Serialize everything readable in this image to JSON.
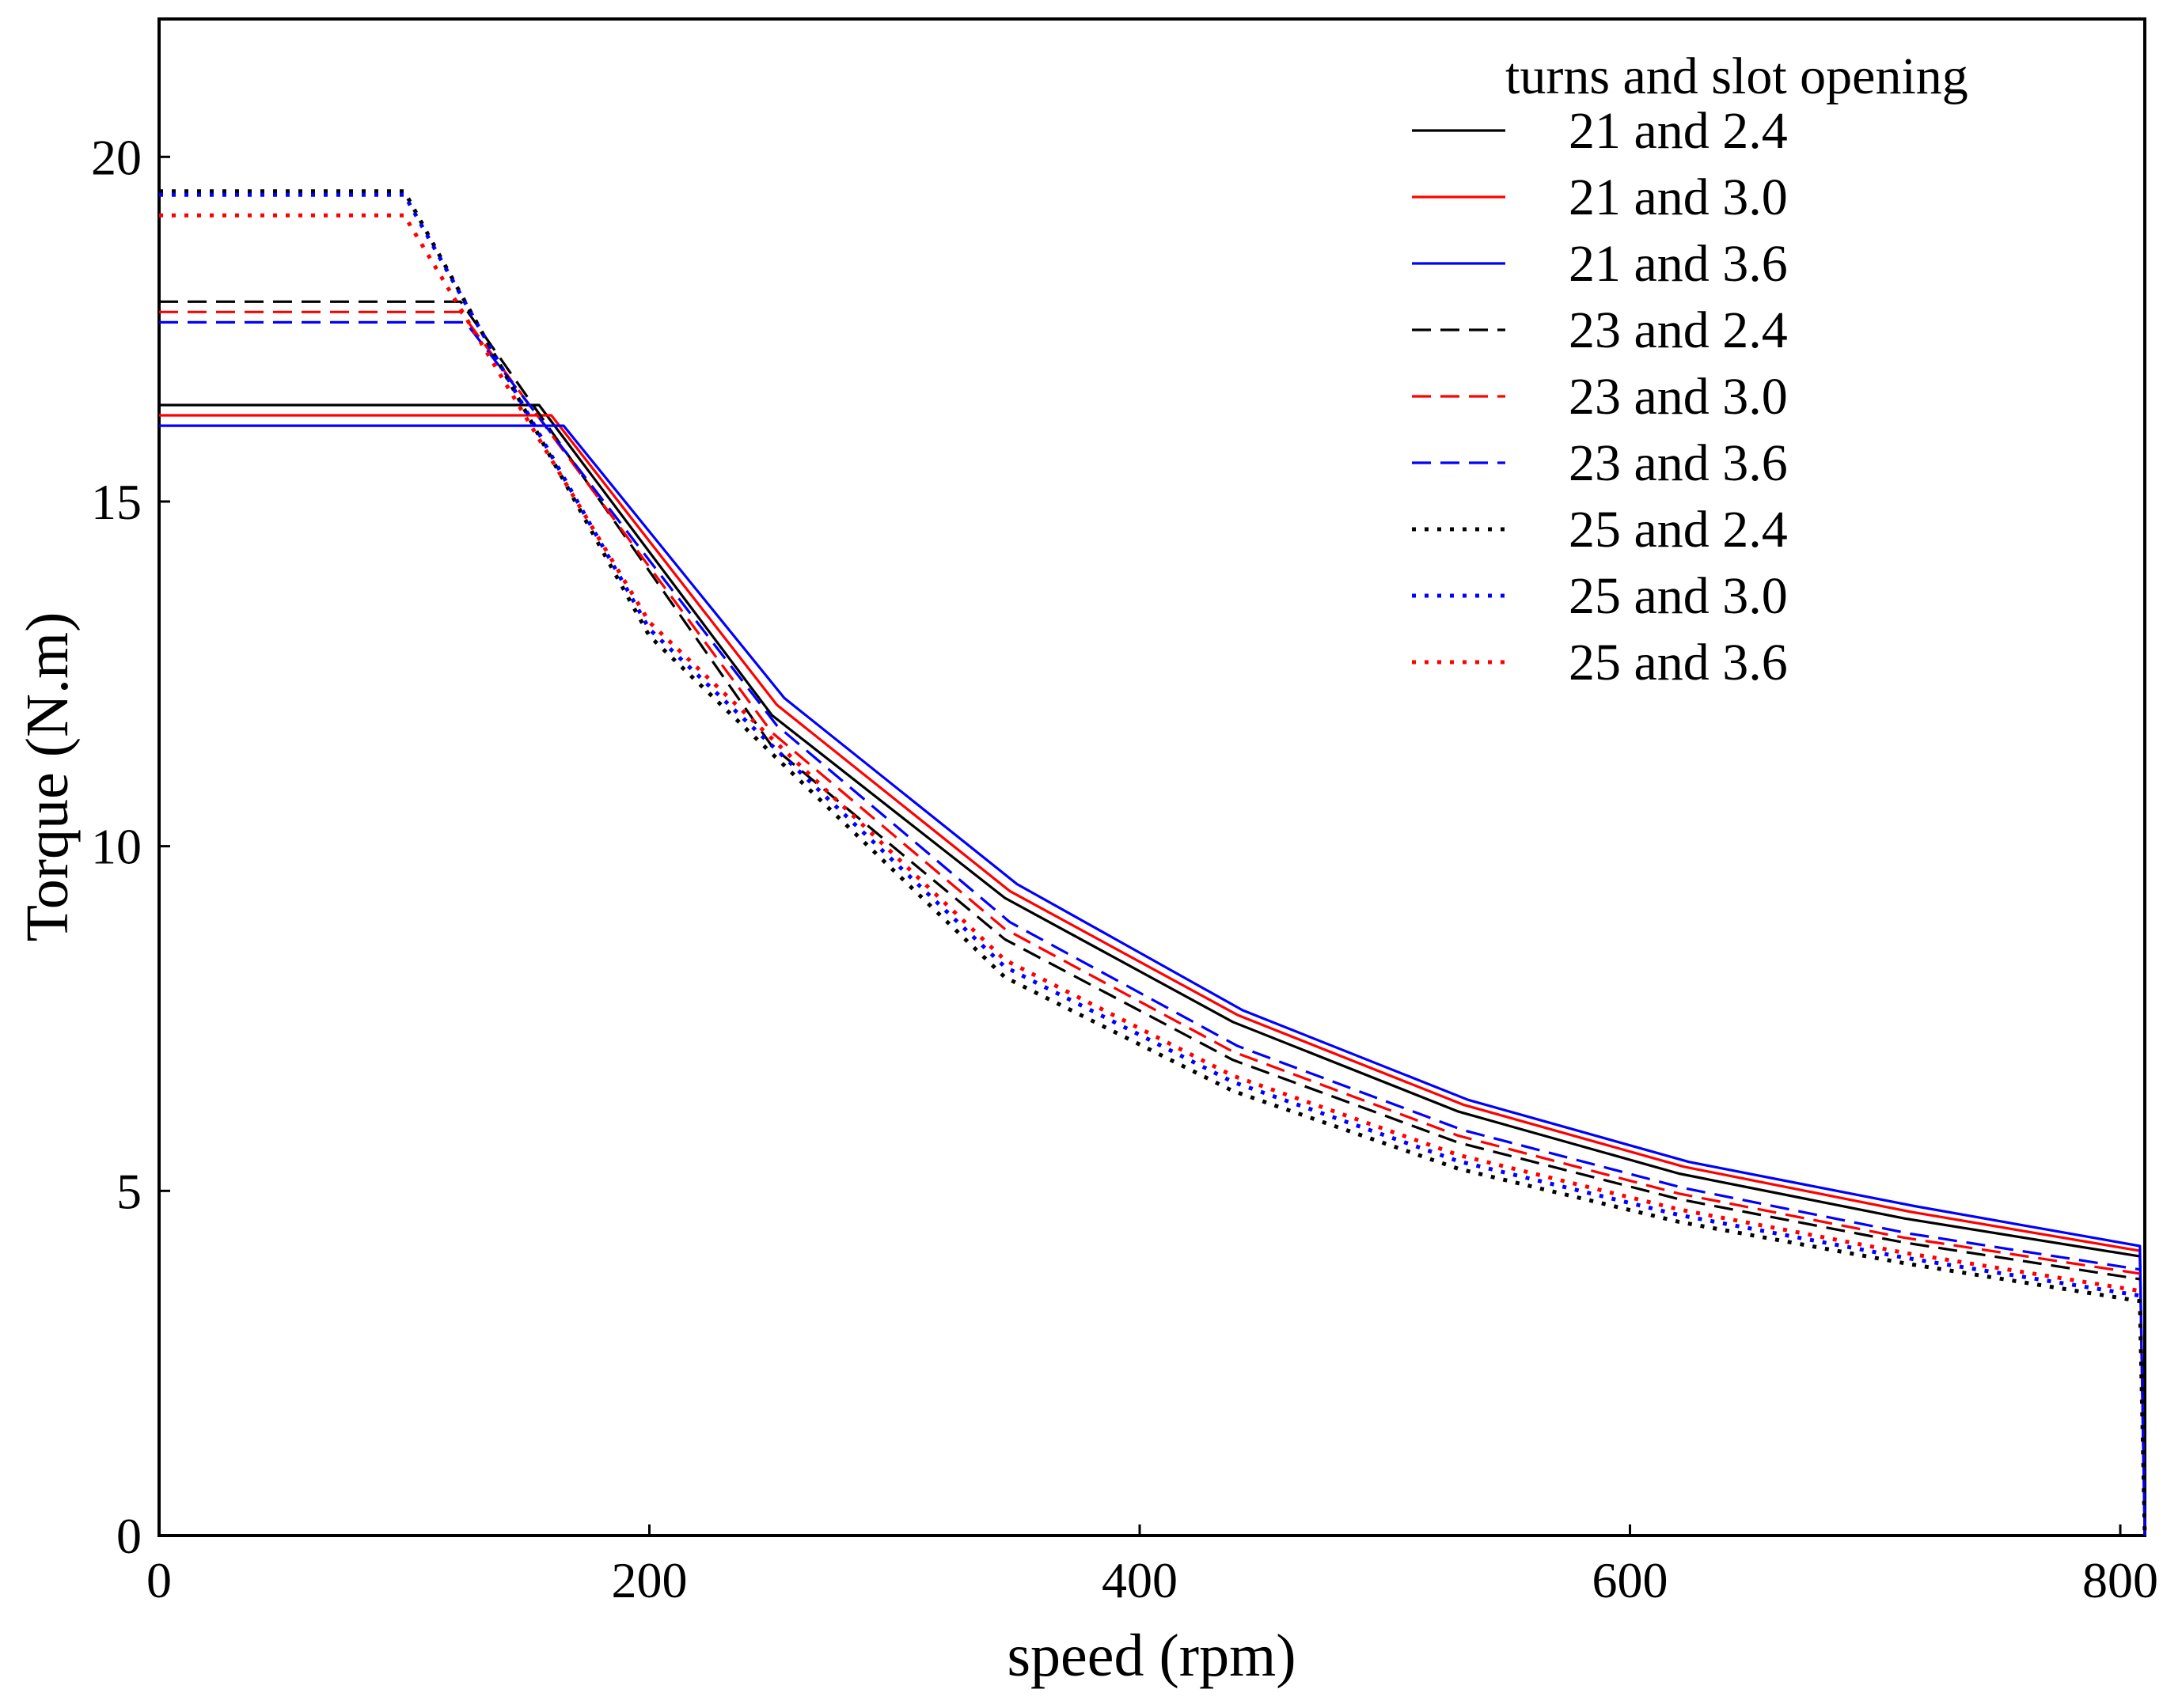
{
  "chart_data": {
    "type": "line",
    "title": "",
    "xlabel": "speed (rpm)",
    "ylabel": "Torque (N.m)",
    "xlim": [
      0,
      810
    ],
    "ylim": [
      0,
      22
    ],
    "xticks": [
      0,
      200,
      400,
      600,
      800
    ],
    "yticks": [
      0,
      5,
      10,
      15,
      20
    ],
    "grid": false,
    "legend": {
      "title": "turns and slot opening",
      "position": "top-right"
    },
    "series": [
      {
        "name": "21 and 2.4",
        "color": "#000000",
        "style": "solid",
        "x": [
          0,
          155,
          250,
          345,
          438,
          530,
          620,
          712,
          808,
          810
        ],
        "y": [
          16.4,
          16.4,
          11.9,
          9.25,
          7.45,
          6.15,
          5.25,
          4.6,
          4.05,
          0
        ]
      },
      {
        "name": "21 and 3.0",
        "color": "#ff0000",
        "style": "solid",
        "x": [
          0,
          160,
          252,
          347,
          440,
          532,
          622,
          714,
          808,
          810
        ],
        "y": [
          16.25,
          16.25,
          12.05,
          9.35,
          7.55,
          6.25,
          5.35,
          4.7,
          4.13,
          0
        ]
      },
      {
        "name": "21 and 3.6",
        "color": "#0000ff",
        "style": "solid",
        "x": [
          0,
          165,
          255,
          350,
          442,
          534,
          624,
          716,
          808,
          810
        ],
        "y": [
          16.1,
          16.1,
          12.15,
          9.45,
          7.62,
          6.32,
          5.42,
          4.78,
          4.2,
          0
        ]
      },
      {
        "name": "23 and 2.4",
        "color": "#000000",
        "style": "dashed",
        "x": [
          0,
          123,
          250,
          345,
          438,
          530,
          620,
          712,
          808
        ],
        "y": [
          17.9,
          17.9,
          11.45,
          8.65,
          6.9,
          5.7,
          4.88,
          4.25,
          3.72
        ]
      },
      {
        "name": "23 and 3.0",
        "color": "#ff0000",
        "style": "dashed",
        "x": [
          0,
          123,
          250,
          345,
          438,
          530,
          620,
          712,
          808
        ],
        "y": [
          17.75,
          17.75,
          11.65,
          8.8,
          7.02,
          5.8,
          4.96,
          4.32,
          3.8
        ]
      },
      {
        "name": "23 and 3.6",
        "color": "#0000ff",
        "style": "dashed",
        "x": [
          0,
          125,
          252,
          347,
          440,
          532,
          622,
          714,
          808
        ],
        "y": [
          17.6,
          17.6,
          11.75,
          8.9,
          7.1,
          5.88,
          5.04,
          4.38,
          3.86
        ]
      },
      {
        "name": "25 and 2.4",
        "color": "#000000",
        "style": "dotted",
        "x": [
          0,
          100,
          200,
          345,
          438,
          530,
          620,
          712,
          808,
          810
        ],
        "y": [
          19.5,
          19.5,
          13.05,
          8.1,
          6.45,
          5.32,
          4.55,
          3.95,
          3.4,
          0
        ]
      },
      {
        "name": "25 and 3.0",
        "color": "#0000ff",
        "style": "dotted",
        "x": [
          0,
          100,
          200,
          345,
          438,
          530,
          620,
          712,
          808
        ],
        "y": [
          19.45,
          19.45,
          13.15,
          8.25,
          6.58,
          5.43,
          4.65,
          4.03,
          3.48
        ]
      },
      {
        "name": "25 and 3.6",
        "color": "#ff0000",
        "style": "dotted",
        "x": [
          0,
          100,
          200,
          345,
          438,
          530,
          620,
          712,
          808
        ],
        "y": [
          19.15,
          19.15,
          13.25,
          8.35,
          6.67,
          5.52,
          4.73,
          4.1,
          3.55
        ]
      }
    ]
  }
}
